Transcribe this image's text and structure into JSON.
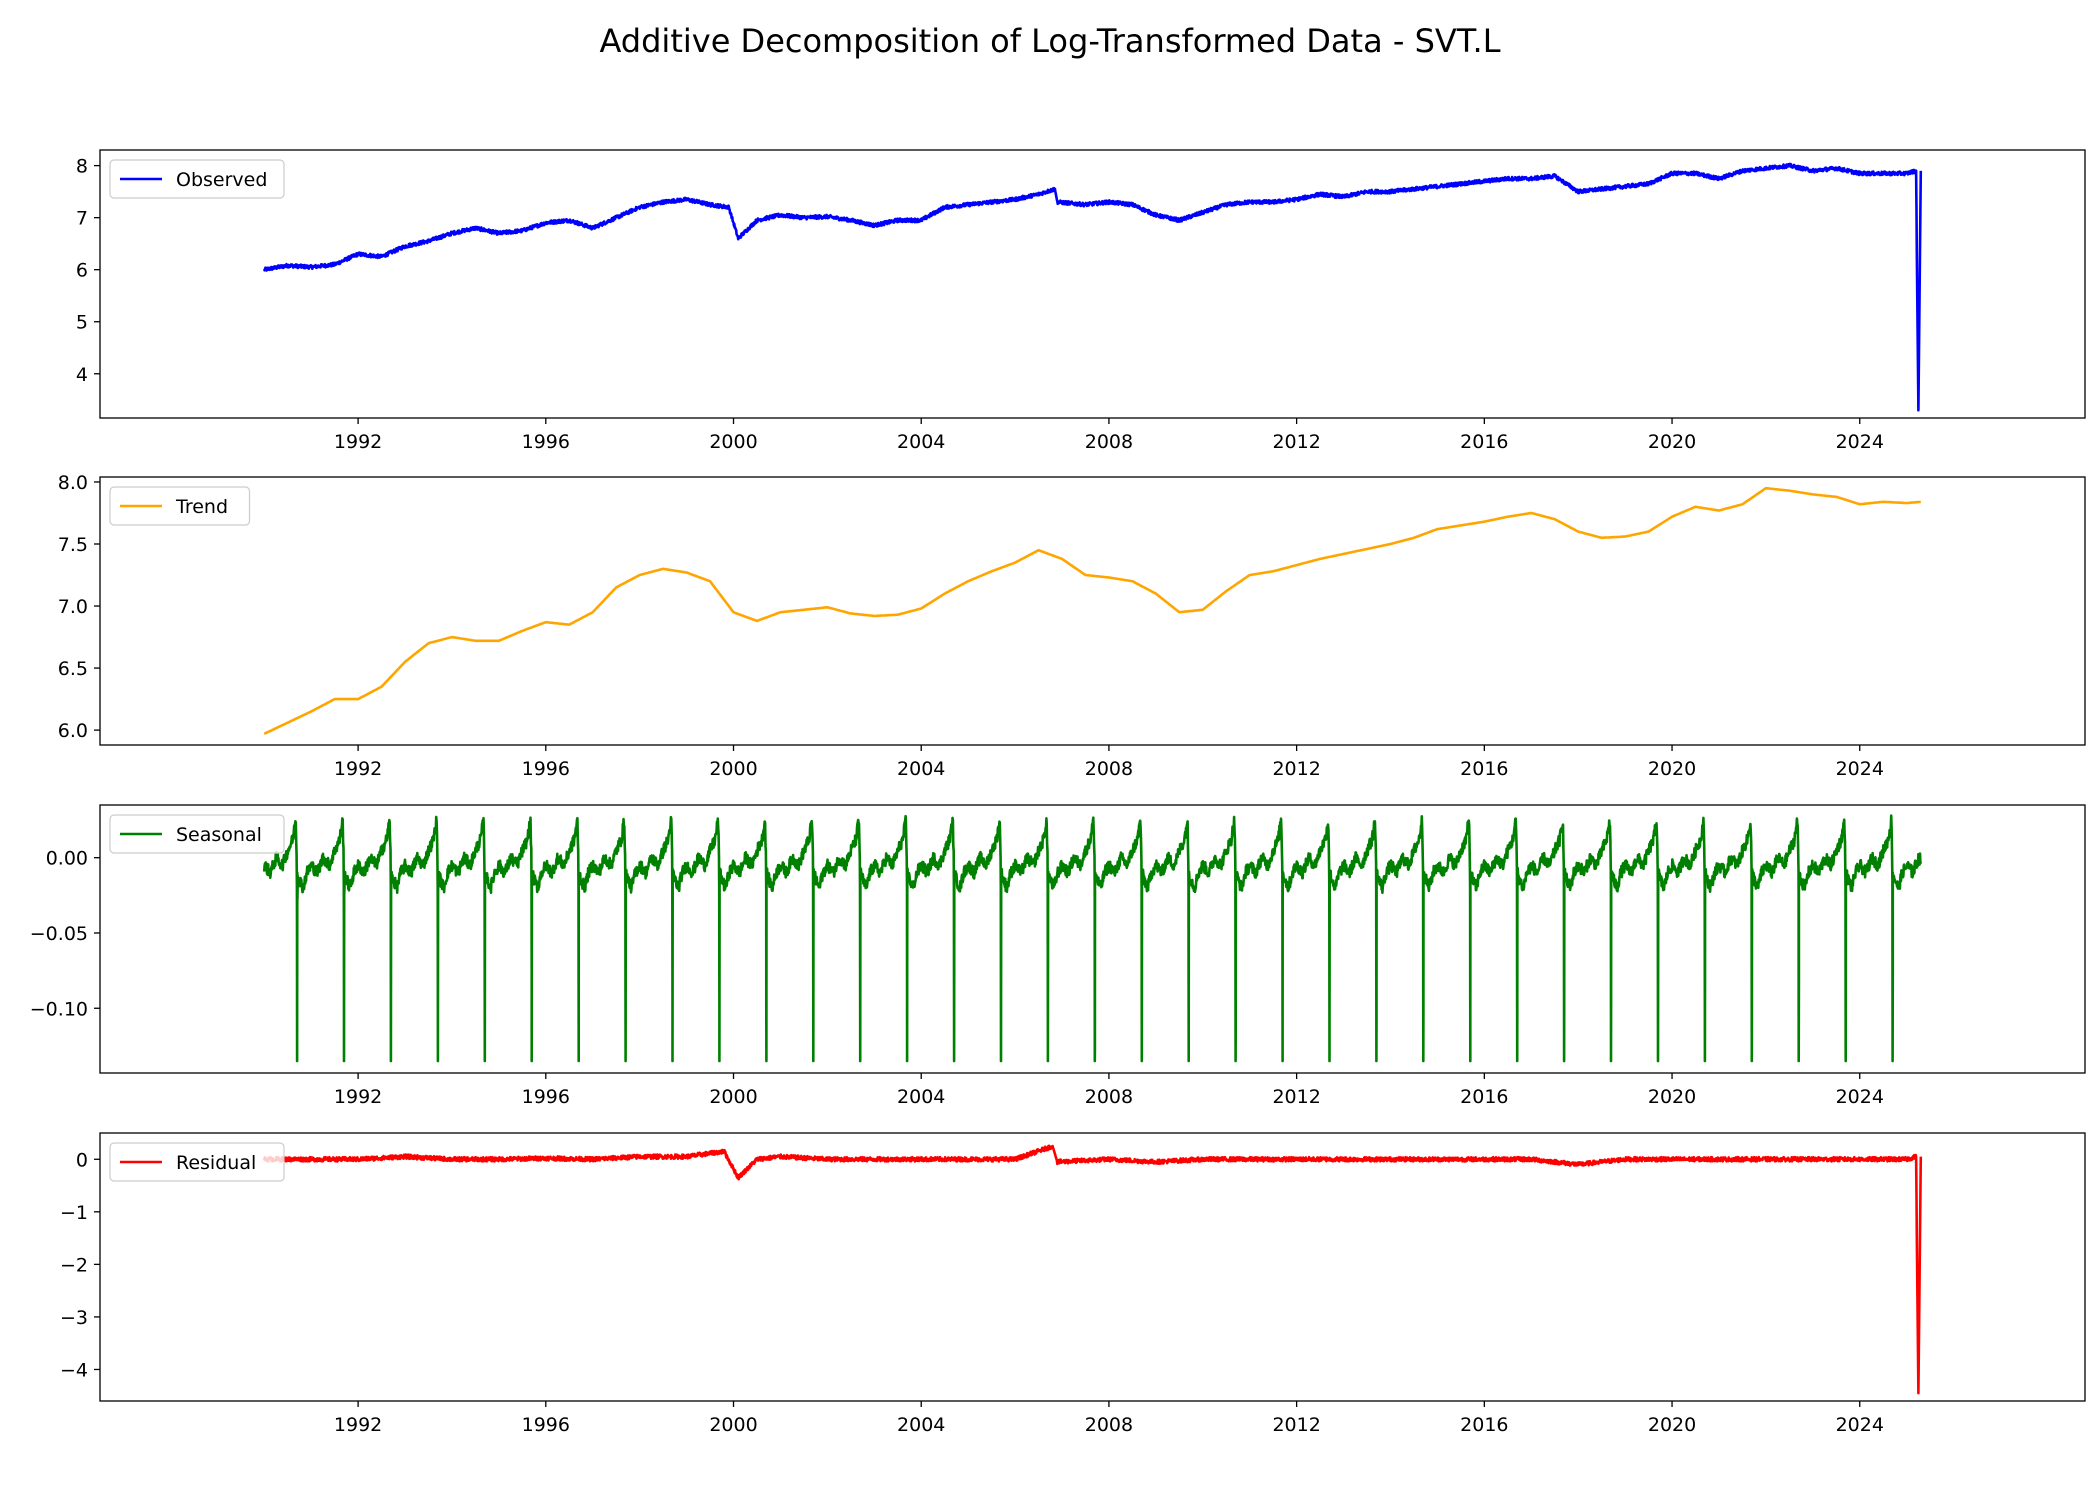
{
  "chart_data": {
    "type": "line",
    "title": "Additive Decomposition of Log-Transformed Data - SVT.L",
    "x_range": [
      1990.0,
      2025.3
    ],
    "x_axis_limits": [
      1986.5,
      2028.8
    ],
    "x_ticks": [
      "1992",
      "1996",
      "2000",
      "2004",
      "2008",
      "2012",
      "2016",
      "2020",
      "2024"
    ],
    "grid": false,
    "legend_placement": "upper left",
    "panels": [
      {
        "name": "Observed",
        "color": "#0000ff",
        "ylim": [
          3.15,
          8.3
        ],
        "y_ticks": [
          {
            "v": 4,
            "t": "4"
          },
          {
            "v": 5,
            "t": "5"
          },
          {
            "v": 6,
            "t": "6"
          },
          {
            "v": 7,
            "t": "7"
          },
          {
            "v": 8,
            "t": "8"
          }
        ],
        "noise": 0.035,
        "x": [
          1990.0,
          1990.5,
          1991.0,
          1991.5,
          1992.0,
          1992.5,
          1993.0,
          1993.5,
          1994.0,
          1994.5,
          1995.0,
          1995.5,
          1996.0,
          1996.5,
          1997.0,
          1997.5,
          1998.0,
          1998.5,
          1999.0,
          1999.5,
          1999.9,
          2000.1,
          2000.5,
          2001.0,
          2001.5,
          2002.0,
          2002.5,
          2003.0,
          2003.5,
          2004.0,
          2004.5,
          2005.0,
          2005.5,
          2006.0,
          2006.5,
          2006.85,
          2006.9,
          2007.5,
          2008.0,
          2008.5,
          2009.0,
          2009.5,
          2010.0,
          2010.5,
          2011.0,
          2011.5,
          2012.0,
          2012.5,
          2013.0,
          2013.5,
          2014.0,
          2014.5,
          2015.0,
          2015.5,
          2016.0,
          2016.5,
          2017.0,
          2017.5,
          2018.0,
          2018.5,
          2019.0,
          2019.5,
          2020.0,
          2020.5,
          2021.0,
          2021.5,
          2022.0,
          2022.5,
          2023.0,
          2023.5,
          2024.0,
          2024.5,
          2025.0,
          2025.2,
          2025.25,
          2025.3
        ],
        "y": [
          6.0,
          6.08,
          6.05,
          6.1,
          6.3,
          6.25,
          6.45,
          6.55,
          6.7,
          6.8,
          6.7,
          6.75,
          6.9,
          6.95,
          6.8,
          7.0,
          7.2,
          7.3,
          7.35,
          7.25,
          7.2,
          6.6,
          6.95,
          7.05,
          7.0,
          7.02,
          6.95,
          6.85,
          6.95,
          6.95,
          7.2,
          7.25,
          7.3,
          7.35,
          7.45,
          7.55,
          7.3,
          7.25,
          7.3,
          7.25,
          7.05,
          6.95,
          7.1,
          7.25,
          7.3,
          7.3,
          7.35,
          7.45,
          7.4,
          7.5,
          7.5,
          7.55,
          7.6,
          7.65,
          7.7,
          7.75,
          7.75,
          7.8,
          7.5,
          7.55,
          7.6,
          7.65,
          7.85,
          7.85,
          7.75,
          7.9,
          7.95,
          8.0,
          7.9,
          7.95,
          7.85,
          7.85,
          7.85,
          7.9,
          3.3,
          7.9
        ]
      },
      {
        "name": "Trend",
        "color": "#ffa500",
        "ylim": [
          5.88,
          8.04
        ],
        "y_ticks": [
          {
            "v": 6.0,
            "t": "6.0"
          },
          {
            "v": 6.5,
            "t": "6.5"
          },
          {
            "v": 7.0,
            "t": "7.0"
          },
          {
            "v": 7.5,
            "t": "7.5"
          },
          {
            "v": 8.0,
            "t": "8.0"
          }
        ],
        "noise": 0,
        "x": [
          1990.0,
          1990.5,
          1991.0,
          1991.5,
          1992.0,
          1992.5,
          1993.0,
          1993.5,
          1994.0,
          1994.5,
          1995.0,
          1995.5,
          1996.0,
          1996.5,
          1997.0,
          1997.5,
          1998.0,
          1998.5,
          1999.0,
          1999.5,
          2000.0,
          2000.5,
          2001.0,
          2001.5,
          2002.0,
          2002.5,
          2003.0,
          2003.5,
          2004.0,
          2004.5,
          2005.0,
          2005.5,
          2006.0,
          2006.5,
          2007.0,
          2007.5,
          2008.0,
          2008.5,
          2009.0,
          2009.5,
          2010.0,
          2010.5,
          2011.0,
          2011.5,
          2012.0,
          2012.5,
          2013.0,
          2013.5,
          2014.0,
          2014.5,
          2015.0,
          2015.5,
          2016.0,
          2016.5,
          2017.0,
          2017.5,
          2018.0,
          2018.5,
          2019.0,
          2019.5,
          2020.0,
          2020.5,
          2021.0,
          2021.5,
          2022.0,
          2022.5,
          2023.0,
          2023.5,
          2024.0,
          2024.5,
          2025.0,
          2025.3
        ],
        "y": [
          5.97,
          6.06,
          6.15,
          6.25,
          6.25,
          6.35,
          6.55,
          6.7,
          6.75,
          6.72,
          6.72,
          6.8,
          6.87,
          6.85,
          6.95,
          7.15,
          7.25,
          7.3,
          7.27,
          7.2,
          6.95,
          6.88,
          6.95,
          6.97,
          6.99,
          6.94,
          6.92,
          6.93,
          6.98,
          7.1,
          7.2,
          7.28,
          7.35,
          7.45,
          7.38,
          7.25,
          7.23,
          7.2,
          7.1,
          6.95,
          6.97,
          7.12,
          7.25,
          7.28,
          7.33,
          7.38,
          7.42,
          7.46,
          7.5,
          7.55,
          7.62,
          7.65,
          7.68,
          7.72,
          7.75,
          7.7,
          7.6,
          7.55,
          7.56,
          7.6,
          7.72,
          7.8,
          7.77,
          7.82,
          7.95,
          7.93,
          7.9,
          7.88,
          7.82,
          7.84,
          7.83,
          7.84
        ]
      },
      {
        "name": "Seasonal",
        "color": "#008000",
        "ylim": [
          -0.143,
          0.035
        ],
        "y_ticks": [
          {
            "v": -0.1,
            "t": "−0.10"
          },
          {
            "v": -0.05,
            "t": "−0.05"
          },
          {
            "v": 0.0,
            "t": "0.00"
          }
        ],
        "noise": 0.004,
        "seasonal_profile": {
          "phase": [
            0.0,
            0.05,
            0.12,
            0.2,
            0.3,
            0.42,
            0.55,
            0.68,
            0.8,
            0.9,
            0.965,
            0.985,
            0.99,
            0.993,
            1.0
          ],
          "value": [
            -0.01,
            -0.015,
            -0.02,
            -0.01,
            -0.005,
            -0.01,
            0.0,
            -0.005,
            0.005,
            0.012,
            0.025,
            0.0,
            -0.02,
            -0.135,
            -0.01
          ]
        },
        "x_range": [
          1990.0,
          2025.3
        ],
        "spike_years": [
          1990.7,
          1991.7,
          1992.7,
          1993.7,
          1994.7,
          1995.7,
          1996.7,
          1997.7,
          1998.7,
          1999.7,
          2000.7,
          2001.7,
          2002.7,
          2003.7,
          2004.7,
          2005.7,
          2006.7,
          2007.7,
          2008.7,
          2009.7,
          2010.7,
          2011.7,
          2012.7,
          2013.7,
          2014.7,
          2015.7,
          2016.7,
          2017.7,
          2018.7,
          2019.7,
          2020.7,
          2021.7,
          2022.7,
          2023.7,
          2024.7
        ]
      },
      {
        "name": "Residual",
        "color": "#ff0000",
        "ylim": [
          -4.6,
          0.5
        ],
        "y_ticks": [
          {
            "v": -4,
            "t": "−4"
          },
          {
            "v": -3,
            "t": "−3"
          },
          {
            "v": -2,
            "t": "−2"
          },
          {
            "v": -1,
            "t": "−1"
          },
          {
            "v": 0,
            "t": "0"
          }
        ],
        "noise": 0.04,
        "x": [
          1990.0,
          1991.0,
          1992.0,
          1993.0,
          1994.0,
          1995.0,
          1996.0,
          1997.0,
          1998.0,
          1999.0,
          1999.8,
          2000.1,
          2000.5,
          2001.0,
          2002.0,
          2003.0,
          2004.0,
          2005.0,
          2006.0,
          2006.8,
          2006.9,
          2008.0,
          2009.0,
          2010.0,
          2011.0,
          2012.0,
          2013.0,
          2014.0,
          2015.0,
          2016.0,
          2017.0,
          2018.0,
          2019.0,
          2020.0,
          2021.0,
          2022.0,
          2023.0,
          2024.0,
          2025.0,
          2025.2,
          2025.25,
          2025.3
        ],
        "y": [
          0.0,
          0.0,
          0.0,
          0.05,
          0.0,
          0.0,
          0.02,
          0.0,
          0.05,
          0.05,
          0.15,
          -0.35,
          0.0,
          0.05,
          0.0,
          0.0,
          0.0,
          0.0,
          0.0,
          0.25,
          -0.05,
          0.0,
          -0.05,
          0.0,
          0.0,
          0.0,
          0.0,
          0.0,
          0.0,
          0.0,
          0.0,
          -0.1,
          0.0,
          0.0,
          0.0,
          0.0,
          0.0,
          0.0,
          0.0,
          0.05,
          -4.45,
          0.05
        ]
      }
    ]
  }
}
